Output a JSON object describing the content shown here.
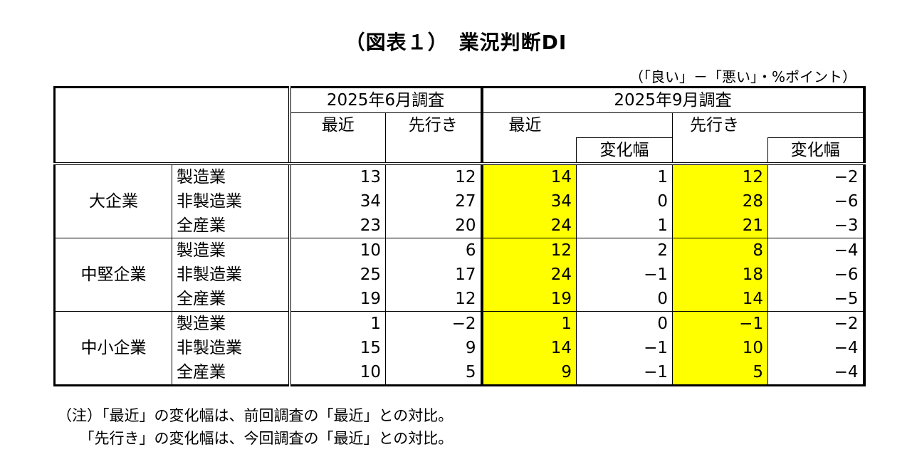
{
  "title": "（図表１）　業況判断DI",
  "unit": "（「良い」－「悪い」・%ポイント）",
  "header": {
    "survey_june": "2025年6月調査",
    "survey_sept": "2025年9月調査",
    "recent": "最近",
    "forecast": "先行き",
    "change": "変化幅"
  },
  "groups": [
    {
      "name": "大企業",
      "rows": [
        {
          "sector": "製造業",
          "jun_recent": "13",
          "jun_forecast": "12",
          "sep_recent": "14",
          "sep_recent_change": "1",
          "sep_forecast": "12",
          "sep_forecast_change": "−2"
        },
        {
          "sector": "非製造業",
          "jun_recent": "34",
          "jun_forecast": "27",
          "sep_recent": "34",
          "sep_recent_change": "0",
          "sep_forecast": "28",
          "sep_forecast_change": "−6"
        },
        {
          "sector": "全産業",
          "jun_recent": "23",
          "jun_forecast": "20",
          "sep_recent": "24",
          "sep_recent_change": "1",
          "sep_forecast": "21",
          "sep_forecast_change": "−3"
        }
      ]
    },
    {
      "name": "中堅企業",
      "rows": [
        {
          "sector": "製造業",
          "jun_recent": "10",
          "jun_forecast": "6",
          "sep_recent": "12",
          "sep_recent_change": "2",
          "sep_forecast": "8",
          "sep_forecast_change": "−4"
        },
        {
          "sector": "非製造業",
          "jun_recent": "25",
          "jun_forecast": "17",
          "sep_recent": "24",
          "sep_recent_change": "−1",
          "sep_forecast": "18",
          "sep_forecast_change": "−6"
        },
        {
          "sector": "全産業",
          "jun_recent": "19",
          "jun_forecast": "12",
          "sep_recent": "19",
          "sep_recent_change": "0",
          "sep_forecast": "14",
          "sep_forecast_change": "−5"
        }
      ]
    },
    {
      "name": "中小企業",
      "rows": [
        {
          "sector": "製造業",
          "jun_recent": "1",
          "jun_forecast": "−2",
          "sep_recent": "1",
          "sep_recent_change": "0",
          "sep_forecast": "−1",
          "sep_forecast_change": "−2"
        },
        {
          "sector": "非製造業",
          "jun_recent": "15",
          "jun_forecast": "9",
          "sep_recent": "14",
          "sep_recent_change": "−1",
          "sep_forecast": "10",
          "sep_forecast_change": "−4"
        },
        {
          "sector": "全産業",
          "jun_recent": "10",
          "jun_forecast": "5",
          "sep_recent": "9",
          "sep_recent_change": "−1",
          "sep_forecast": "5",
          "sep_forecast_change": "−4"
        }
      ]
    }
  ],
  "highlight_color": "#ffff00",
  "notes": [
    "（注）「最近」の変化幅は、前回調査の「最近」との対比。",
    "　　「先行き」の変化幅は、今回調査の「最近」との対比。"
  ]
}
